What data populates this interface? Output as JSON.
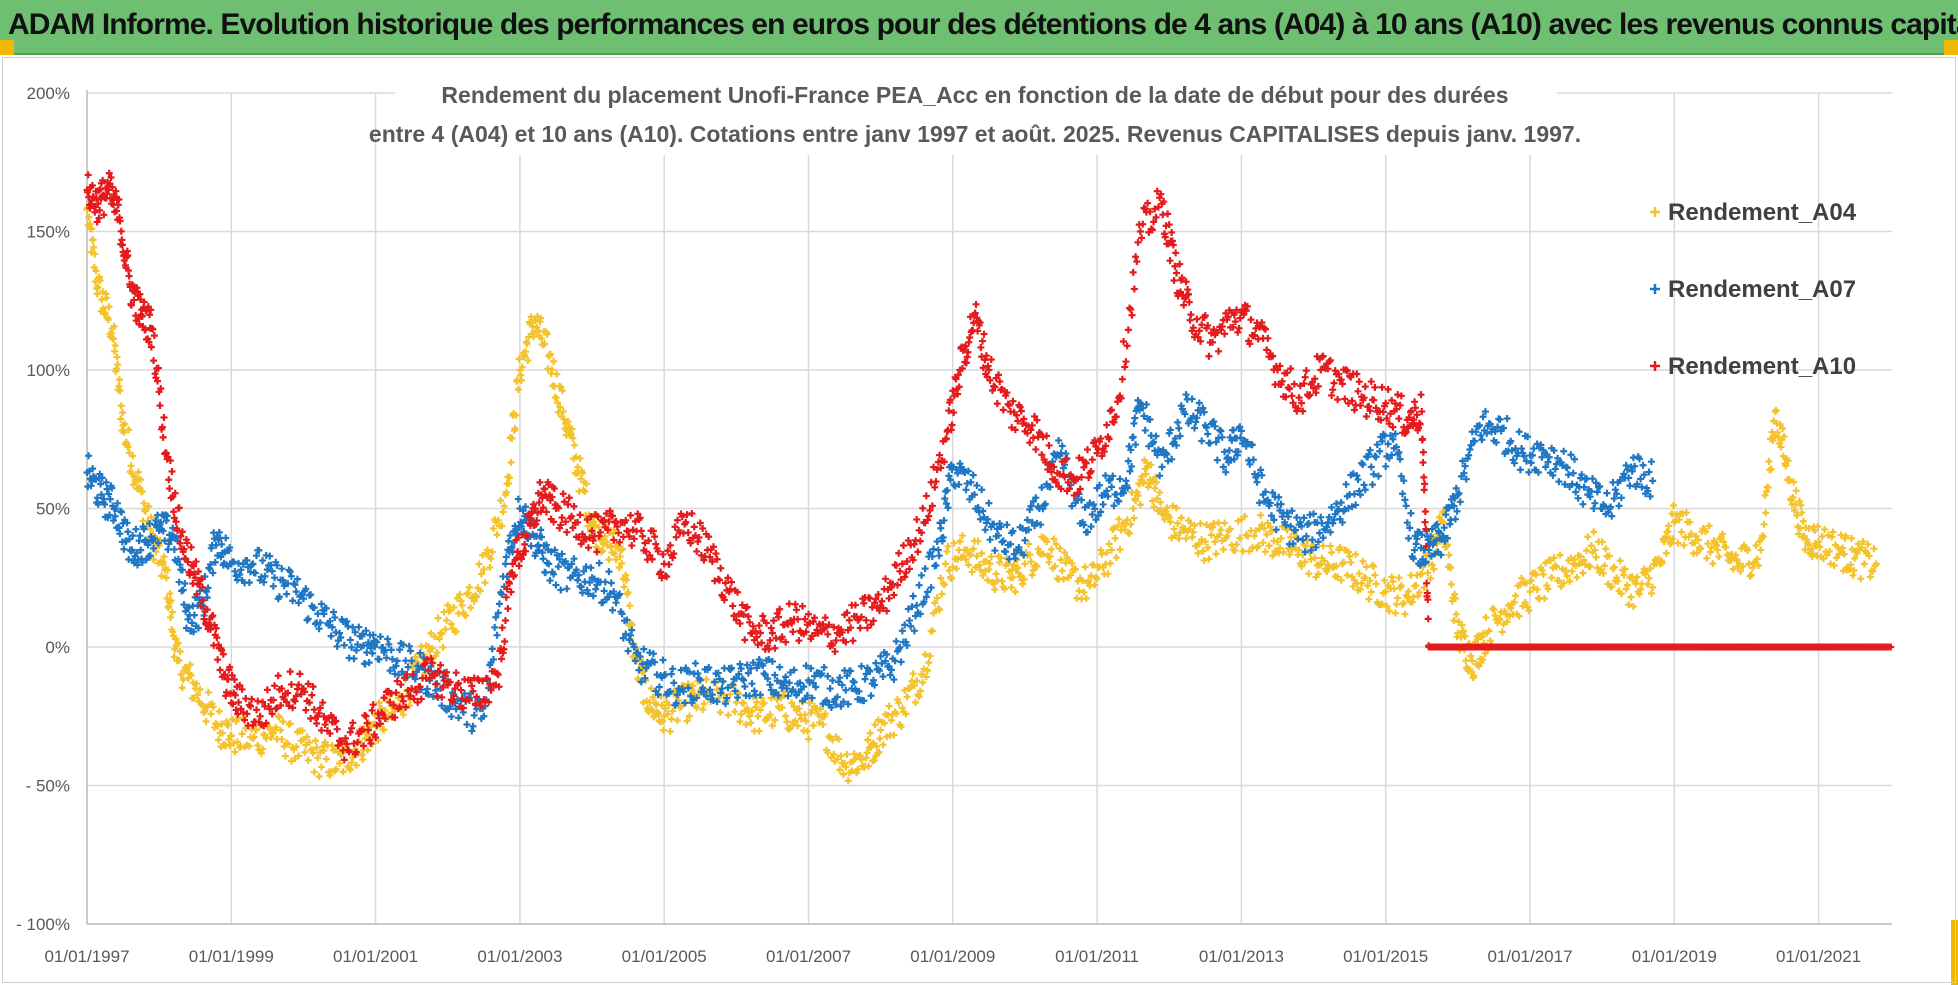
{
  "banner": {
    "title": "ADAM Informe. Evolution historique des performances en euros pour des détentions de 4 ans (A04) à 10 ans (A10) avec les revenus connus capitalisés"
  },
  "chart_data": {
    "type": "scatter",
    "title_line1": "Rendement du placement Unofi-France PEA_Acc en fonction de la date de début pour des durées",
    "title_line2": "entre 4 (A04) et 10 ans (A10).  Cotations entre janv 1997 et août. 2025. Revenus CAPITALISES depuis janv. 1997.",
    "xlabel": "",
    "ylabel": "",
    "x_tick_labels": [
      "01/01/1997",
      "01/01/1999",
      "01/01/2001",
      "01/01/2003",
      "01/01/2005",
      "01/01/2007",
      "01/01/2009",
      "01/01/2011",
      "01/01/2013",
      "01/01/2015",
      "01/01/2017",
      "01/01/2019",
      "01/01/2021"
    ],
    "x_range": [
      1997.0,
      2022.1
    ],
    "y_tick_labels": [
      "200%",
      "150%",
      "100%",
      "50%",
      "0%",
      "- 50%",
      "- 100%"
    ],
    "y_ticks": [
      200,
      150,
      100,
      50,
      0,
      -50,
      -100
    ],
    "ylim": [
      -100,
      200
    ],
    "grid": "horizontal",
    "legend_position": "right",
    "marker": "+",
    "series": [
      {
        "name": "Rendement_A04",
        "color": "#f4c22b",
        "points": [
          [
            1997.0,
            158
          ],
          [
            1997.15,
            130
          ],
          [
            1997.35,
            115
          ],
          [
            1997.5,
            80
          ],
          [
            1997.7,
            60
          ],
          [
            1997.9,
            40
          ],
          [
            1998.1,
            25
          ],
          [
            1998.25,
            -5
          ],
          [
            1998.5,
            -15
          ],
          [
            1998.8,
            -28
          ],
          [
            1999.0,
            -32
          ],
          [
            1999.3,
            -33
          ],
          [
            1999.6,
            -30
          ],
          [
            1999.9,
            -36
          ],
          [
            2000.2,
            -40
          ],
          [
            2000.5,
            -42
          ],
          [
            2000.8,
            -35
          ],
          [
            2001.0,
            -28
          ],
          [
            2001.3,
            -22
          ],
          [
            2001.6,
            -8
          ],
          [
            2001.9,
            5
          ],
          [
            2002.2,
            15
          ],
          [
            2002.5,
            28
          ],
          [
            2002.8,
            55
          ],
          [
            2003.0,
            100
          ],
          [
            2003.2,
            118
          ],
          [
            2003.4,
            105
          ],
          [
            2003.6,
            85
          ],
          [
            2003.8,
            65
          ],
          [
            2004.0,
            45
          ],
          [
            2004.2,
            38
          ],
          [
            2004.4,
            35
          ],
          [
            2004.6,
            -5
          ],
          [
            2004.8,
            -20
          ],
          [
            2005.0,
            -25
          ],
          [
            2005.3,
            -20
          ],
          [
            2005.6,
            -18
          ],
          [
            2006.0,
            -20
          ],
          [
            2006.3,
            -25
          ],
          [
            2006.6,
            -22
          ],
          [
            2006.9,
            -26
          ],
          [
            2007.2,
            -28
          ],
          [
            2007.5,
            -42
          ],
          [
            2007.8,
            -40
          ],
          [
            2008.0,
            -30
          ],
          [
            2008.3,
            -22
          ],
          [
            2008.6,
            -8
          ],
          [
            2008.9,
            30
          ],
          [
            2009.2,
            35
          ],
          [
            2009.5,
            28
          ],
          [
            2009.8,
            25
          ],
          [
            2010.0,
            30
          ],
          [
            2010.3,
            38
          ],
          [
            2010.6,
            25
          ],
          [
            2010.9,
            22
          ],
          [
            2011.2,
            35
          ],
          [
            2011.5,
            50
          ],
          [
            2011.7,
            65
          ],
          [
            2011.9,
            48
          ],
          [
            2012.2,
            42
          ],
          [
            2012.5,
            38
          ],
          [
            2012.8,
            40
          ],
          [
            2013.2,
            42
          ],
          [
            2013.5,
            38
          ],
          [
            2013.8,
            35
          ],
          [
            2014.1,
            30
          ],
          [
            2014.4,
            30
          ],
          [
            2014.7,
            25
          ],
          [
            2015.0,
            20
          ],
          [
            2015.3,
            18
          ],
          [
            2015.6,
            30
          ],
          [
            2015.8,
            45
          ],
          [
            2016.0,
            5
          ],
          [
            2016.2,
            -5
          ],
          [
            2016.4,
            5
          ],
          [
            2016.7,
            15
          ],
          [
            2017.0,
            20
          ],
          [
            2017.3,
            25
          ],
          [
            2017.6,
            30
          ],
          [
            2017.9,
            35
          ],
          [
            2018.2,
            25
          ],
          [
            2018.5,
            20
          ],
          [
            2018.8,
            30
          ],
          [
            2019.0,
            45
          ],
          [
            2019.3,
            40
          ],
          [
            2019.6,
            35
          ],
          [
            2019.9,
            30
          ],
          [
            2020.2,
            35
          ],
          [
            2020.4,
            85
          ],
          [
            2020.6,
            60
          ],
          [
            2020.8,
            40
          ],
          [
            2021.0,
            38
          ],
          [
            2021.3,
            35
          ],
          [
            2021.5,
            32
          ],
          [
            2021.8,
            30
          ]
        ]
      },
      {
        "name": "Rendement_A07",
        "color": "#1f77c4",
        "points": [
          [
            1997.0,
            63
          ],
          [
            1997.2,
            55
          ],
          [
            1997.4,
            50
          ],
          [
            1997.6,
            35
          ],
          [
            1997.8,
            38
          ],
          [
            1998.0,
            42
          ],
          [
            1998.2,
            40
          ],
          [
            1998.4,
            10
          ],
          [
            1998.6,
            15
          ],
          [
            1998.8,
            40
          ],
          [
            1999.0,
            30
          ],
          [
            1999.3,
            30
          ],
          [
            1999.6,
            25
          ],
          [
            1999.9,
            20
          ],
          [
            2000.2,
            12
          ],
          [
            2000.5,
            5
          ],
          [
            2000.8,
            0
          ],
          [
            2001.0,
            2
          ],
          [
            2001.3,
            -5
          ],
          [
            2001.6,
            -8
          ],
          [
            2001.9,
            -15
          ],
          [
            2002.2,
            -22
          ],
          [
            2002.5,
            -25
          ],
          [
            2002.8,
            30
          ],
          [
            2003.0,
            50
          ],
          [
            2003.2,
            40
          ],
          [
            2003.4,
            30
          ],
          [
            2003.7,
            25
          ],
          [
            2004.0,
            25
          ],
          [
            2004.3,
            20
          ],
          [
            2004.6,
            -5
          ],
          [
            2004.9,
            -10
          ],
          [
            2005.2,
            -15
          ],
          [
            2005.5,
            -12
          ],
          [
            2005.8,
            -15
          ],
          [
            2006.1,
            -12
          ],
          [
            2006.4,
            -10
          ],
          [
            2006.7,
            -15
          ],
          [
            2007.0,
            -12
          ],
          [
            2007.3,
            -15
          ],
          [
            2007.6,
            -15
          ],
          [
            2007.9,
            -12
          ],
          [
            2008.2,
            -5
          ],
          [
            2008.5,
            15
          ],
          [
            2008.8,
            35
          ],
          [
            2009.0,
            65
          ],
          [
            2009.3,
            55
          ],
          [
            2009.6,
            40
          ],
          [
            2009.9,
            35
          ],
          [
            2010.2,
            50
          ],
          [
            2010.5,
            70
          ],
          [
            2010.8,
            45
          ],
          [
            2011.1,
            55
          ],
          [
            2011.4,
            60
          ],
          [
            2011.6,
            88
          ],
          [
            2011.9,
            65
          ],
          [
            2012.2,
            85
          ],
          [
            2012.5,
            80
          ],
          [
            2012.8,
            68
          ],
          [
            2013.0,
            78
          ],
          [
            2013.3,
            55
          ],
          [
            2013.6,
            45
          ],
          [
            2013.9,
            40
          ],
          [
            2014.2,
            45
          ],
          [
            2014.5,
            55
          ],
          [
            2014.8,
            65
          ],
          [
            2015.1,
            75
          ],
          [
            2015.4,
            35
          ],
          [
            2015.6,
            35
          ],
          [
            2015.8,
            40
          ],
          [
            2016.0,
            55
          ],
          [
            2016.3,
            80
          ],
          [
            2016.6,
            78
          ],
          [
            2016.9,
            70
          ],
          [
            2017.2,
            70
          ],
          [
            2017.5,
            65
          ],
          [
            2017.8,
            55
          ],
          [
            2018.1,
            50
          ],
          [
            2018.4,
            65
          ],
          [
            2018.7,
            60
          ]
        ]
      },
      {
        "name": "Rendement_A10",
        "color": "#e41a1c",
        "points": [
          [
            1997.0,
            165
          ],
          [
            1997.15,
            160
          ],
          [
            1997.3,
            165
          ],
          [
            1997.45,
            155
          ],
          [
            1997.6,
            130
          ],
          [
            1997.75,
            120
          ],
          [
            1997.9,
            115
          ],
          [
            1998.1,
            70
          ],
          [
            1998.3,
            40
          ],
          [
            1998.5,
            25
          ],
          [
            1998.7,
            10
          ],
          [
            1998.9,
            -10
          ],
          [
            1999.1,
            -20
          ],
          [
            1999.4,
            -25
          ],
          [
            1999.7,
            -15
          ],
          [
            2000.0,
            -15
          ],
          [
            2000.3,
            -28
          ],
          [
            2000.6,
            -35
          ],
          [
            2000.9,
            -30
          ],
          [
            2001.2,
            -20
          ],
          [
            2001.5,
            -15
          ],
          [
            2001.8,
            -10
          ],
          [
            2002.1,
            -15
          ],
          [
            2002.4,
            -18
          ],
          [
            2002.7,
            -10
          ],
          [
            2002.9,
            30
          ],
          [
            2003.1,
            40
          ],
          [
            2003.3,
            55
          ],
          [
            2003.5,
            50
          ],
          [
            2003.8,
            45
          ],
          [
            2004.1,
            40
          ],
          [
            2004.4,
            45
          ],
          [
            2004.7,
            40
          ],
          [
            2005.0,
            30
          ],
          [
            2005.3,
            45
          ],
          [
            2005.6,
            35
          ],
          [
            2005.9,
            20
          ],
          [
            2006.2,
            5
          ],
          [
            2006.5,
            5
          ],
          [
            2006.8,
            10
          ],
          [
            2007.1,
            5
          ],
          [
            2007.4,
            5
          ],
          [
            2007.7,
            10
          ],
          [
            2008.0,
            15
          ],
          [
            2008.3,
            30
          ],
          [
            2008.6,
            45
          ],
          [
            2008.9,
            75
          ],
          [
            2009.1,
            100
          ],
          [
            2009.3,
            120
          ],
          [
            2009.5,
            100
          ],
          [
            2009.8,
            85
          ],
          [
            2010.1,
            80
          ],
          [
            2010.4,
            65
          ],
          [
            2010.7,
            60
          ],
          [
            2011.0,
            70
          ],
          [
            2011.3,
            90
          ],
          [
            2011.6,
            150
          ],
          [
            2011.9,
            160
          ],
          [
            2012.1,
            135
          ],
          [
            2012.3,
            120
          ],
          [
            2012.6,
            110
          ],
          [
            2012.9,
            120
          ],
          [
            2013.2,
            115
          ],
          [
            2013.5,
            100
          ],
          [
            2013.8,
            90
          ],
          [
            2014.1,
            100
          ],
          [
            2014.4,
            95
          ],
          [
            2014.7,
            90
          ],
          [
            2015.0,
            88
          ],
          [
            2015.3,
            82
          ],
          [
            2015.5,
            85
          ],
          [
            2015.6,
            0
          ],
          [
            2016.0,
            0
          ],
          [
            2016.5,
            0
          ],
          [
            2017.0,
            0
          ],
          [
            2017.5,
            0
          ],
          [
            2018.0,
            0
          ],
          [
            2018.5,
            0
          ],
          [
            2019.0,
            0
          ],
          [
            2019.5,
            0
          ],
          [
            2020.0,
            0
          ],
          [
            2020.5,
            0
          ],
          [
            2021.0,
            0
          ],
          [
            2021.5,
            0
          ],
          [
            2022.0,
            0
          ]
        ]
      }
    ]
  }
}
